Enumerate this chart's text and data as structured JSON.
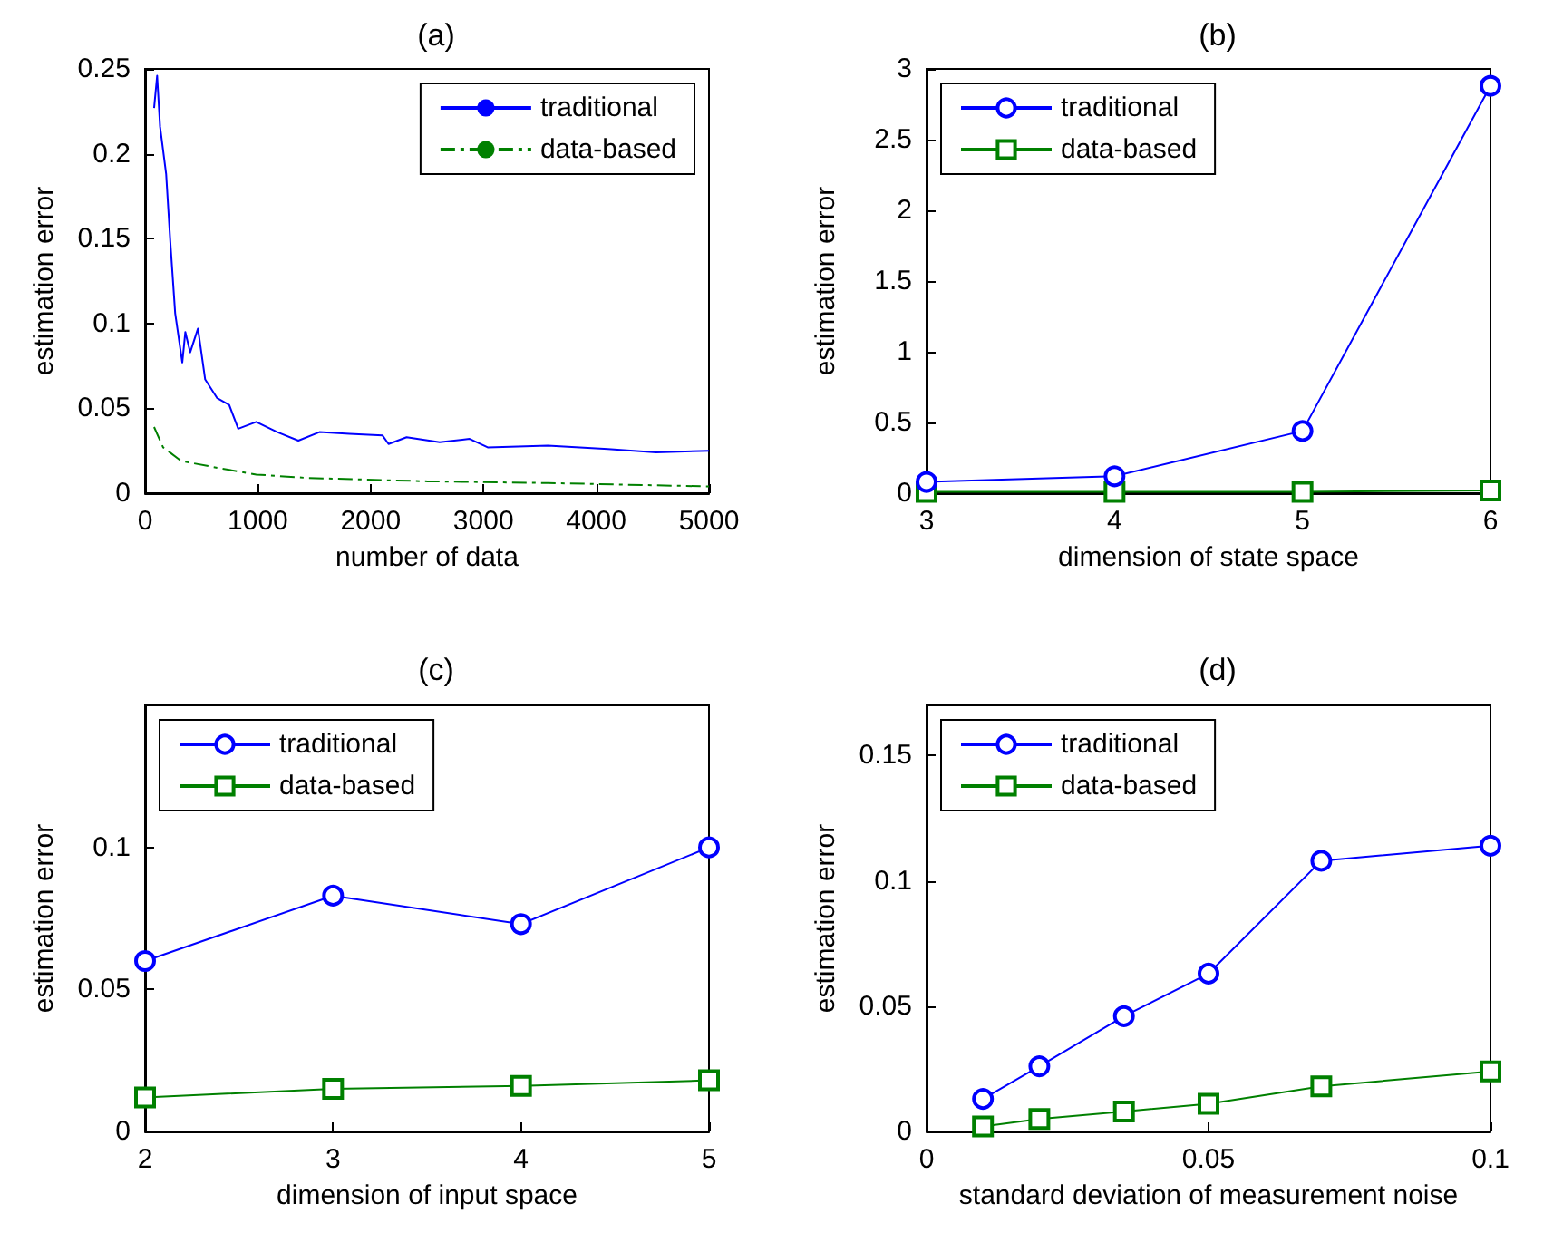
{
  "chart_data": [
    {
      "type": "line",
      "title": "(a)",
      "xlabel": "number of data",
      "ylabel": "estimation error",
      "xlim": [
        0,
        5000
      ],
      "xticks": [
        0,
        1000,
        2000,
        3000,
        4000,
        5000
      ],
      "ylim": [
        0,
        0.25
      ],
      "yticks": [
        0,
        0.05,
        0.1,
        0.15,
        0.2,
        0.25
      ],
      "grid": false,
      "legend": "top right",
      "series": [
        {
          "name": "traditional",
          "color": "#0000ff",
          "marker": "none",
          "line_style": "solid",
          "x": [
            80,
            107,
            133,
            187,
            224,
            267,
            330,
            357,
            400,
            469,
            533,
            640,
            746,
            826,
            986,
            1173,
            1359,
            1546,
            1812,
            2106,
            2159,
            2319,
            2612,
            2878,
            3038,
            3571,
            4104,
            4531,
            5000
          ],
          "values": [
            0.227,
            0.246,
            0.216,
            0.188,
            0.148,
            0.106,
            0.077,
            0.095,
            0.083,
            0.097,
            0.067,
            0.056,
            0.052,
            0.038,
            0.042,
            0.036,
            0.031,
            0.036,
            0.035,
            0.034,
            0.029,
            0.033,
            0.03,
            0.032,
            0.027,
            0.028,
            0.026,
            0.024,
            0.025
          ]
        },
        {
          "name": "data-based",
          "color": "#008000",
          "marker": "none",
          "line_style": "dashed",
          "x": [
            80,
            160,
            320,
            640,
            986,
            1439,
            2505,
            3571,
            5000
          ],
          "values": [
            0.039,
            0.027,
            0.019,
            0.015,
            0.011,
            0.009,
            0.007,
            0.006,
            0.004
          ]
        }
      ]
    },
    {
      "type": "line",
      "title": "(b)",
      "xlabel": "dimension of state space",
      "ylabel": "estimation error",
      "xlim": [
        3,
        6
      ],
      "xticks": [
        3,
        4,
        5,
        6
      ],
      "ylim": [
        0,
        3
      ],
      "yticks": [
        0,
        0.5,
        1,
        1.5,
        2,
        2.5,
        3
      ],
      "grid": false,
      "legend": "top left",
      "x": [
        3,
        4,
        5,
        6
      ],
      "series": [
        {
          "name": "traditional",
          "color": "#0000ff",
          "marker": "circle",
          "line_style": "solid",
          "values": [
            0.08,
            0.12,
            0.44,
            2.88
          ]
        },
        {
          "name": "data-based",
          "color": "#008000",
          "marker": "square",
          "line_style": "solid",
          "values": [
            0.01,
            0.01,
            0.01,
            0.02
          ]
        }
      ]
    },
    {
      "type": "line",
      "title": "(c)",
      "xlabel": "dimension of input space",
      "ylabel": "estimation error",
      "xlim": [
        2,
        5
      ],
      "xticks": [
        2,
        3,
        4,
        5
      ],
      "ylim": [
        0,
        0.15
      ],
      "yticks": [
        0,
        0.05,
        0.1
      ],
      "grid": false,
      "legend": "top left",
      "x": [
        2,
        3,
        4,
        5
      ],
      "series": [
        {
          "name": "traditional",
          "color": "#0000ff",
          "marker": "circle",
          "line_style": "solid",
          "values": [
            0.06,
            0.083,
            0.073,
            0.1
          ]
        },
        {
          "name": "data-based",
          "color": "#008000",
          "marker": "square",
          "line_style": "solid",
          "values": [
            0.012,
            0.015,
            0.016,
            0.018
          ]
        }
      ]
    },
    {
      "type": "line",
      "title": "(d)",
      "xlabel": "standard deviation of measurement noise",
      "ylabel": "estimation error",
      "xlim": [
        0,
        0.1
      ],
      "xticks": [
        0,
        0.05,
        0.1
      ],
      "ylim": [
        0,
        0.17
      ],
      "yticks": [
        0,
        0.05,
        0.1,
        0.15
      ],
      "grid": false,
      "legend": "top left",
      "x": [
        0.01,
        0.02,
        0.035,
        0.05,
        0.07,
        0.1
      ],
      "series": [
        {
          "name": "traditional",
          "color": "#0000ff",
          "marker": "circle",
          "line_style": "solid",
          "values": [
            0.013,
            0.026,
            0.046,
            0.063,
            0.108,
            0.114
          ]
        },
        {
          "name": "data-based",
          "color": "#008000",
          "marker": "square",
          "line_style": "solid",
          "values": [
            0.002,
            0.005,
            0.008,
            0.011,
            0.018,
            0.024
          ]
        }
      ]
    }
  ]
}
